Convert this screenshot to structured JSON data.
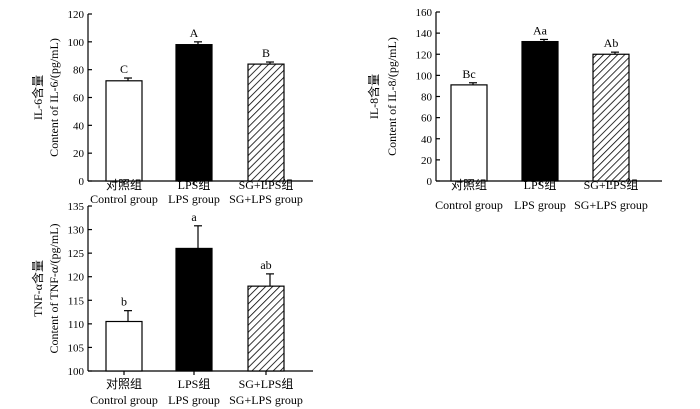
{
  "chart_data": [
    {
      "id": "il6",
      "type": "bar",
      "categories": [
        "对照组 Control group",
        "LPS组 LPS group",
        "SG+LPS组 SG+LPS group"
      ],
      "category_labels_cn": [
        "对照组",
        "LPS组",
        "SG+LPS组"
      ],
      "category_labels_en": [
        "Control group",
        "LPS group",
        "SG+LPS group"
      ],
      "values": [
        72,
        98,
        84
      ],
      "errors": [
        2,
        2,
        1.5
      ],
      "significance": [
        "C",
        "A",
        "B"
      ],
      "fills": [
        "white",
        "black",
        "hatched"
      ],
      "ylabel_cn": "IL-6含量",
      "ylabel_en": "Content of IL-6/(pg/mL)",
      "ylim": [
        0,
        120
      ],
      "yticks": [
        0,
        20,
        40,
        60,
        80,
        100,
        120
      ]
    },
    {
      "id": "il8",
      "type": "bar",
      "categories": [
        "对照组 Control group",
        "LPS组 LPS group",
        "SG+LPS组 SG+LPS group"
      ],
      "category_labels_cn": [
        "对照组",
        "LPS组",
        "SG+LPS组"
      ],
      "category_labels_en": [
        "Control group",
        "LPS group",
        "SG+LPS group"
      ],
      "values": [
        91,
        132,
        120
      ],
      "errors": [
        2,
        2,
        2
      ],
      "significance": [
        "Bc",
        "Aa",
        "Ab"
      ],
      "fills": [
        "white",
        "black",
        "hatched"
      ],
      "ylabel_cn": "IL-8含量",
      "ylabel_en": "Content of IL-8/(pg/mL)",
      "ylim": [
        0,
        160
      ],
      "yticks": [
        0,
        20,
        40,
        60,
        80,
        100,
        120,
        140,
        160
      ]
    },
    {
      "id": "tnfa",
      "type": "bar",
      "categories": [
        "对照组 Control group",
        "LPS组 LPS group",
        "SG+LPS组 SG+LPS group"
      ],
      "category_labels_cn": [
        "对照组",
        "LPS组",
        "SG+LPS组"
      ],
      "category_labels_en": [
        "Control group",
        "LPS group",
        "SG+LPS group"
      ],
      "values": [
        110.5,
        126,
        118
      ],
      "errors": [
        2.3,
        4.8,
        2.6
      ],
      "significance": [
        "b",
        "a",
        "ab"
      ],
      "fills": [
        "white",
        "black",
        "hatched"
      ],
      "ylabel_cn": "TNF-α含量",
      "ylabel_en": "Content of TNF-α/(pg/mL)",
      "ylim": [
        100,
        135
      ],
      "yticks": [
        100,
        105,
        110,
        115,
        120,
        125,
        130,
        135
      ]
    }
  ]
}
